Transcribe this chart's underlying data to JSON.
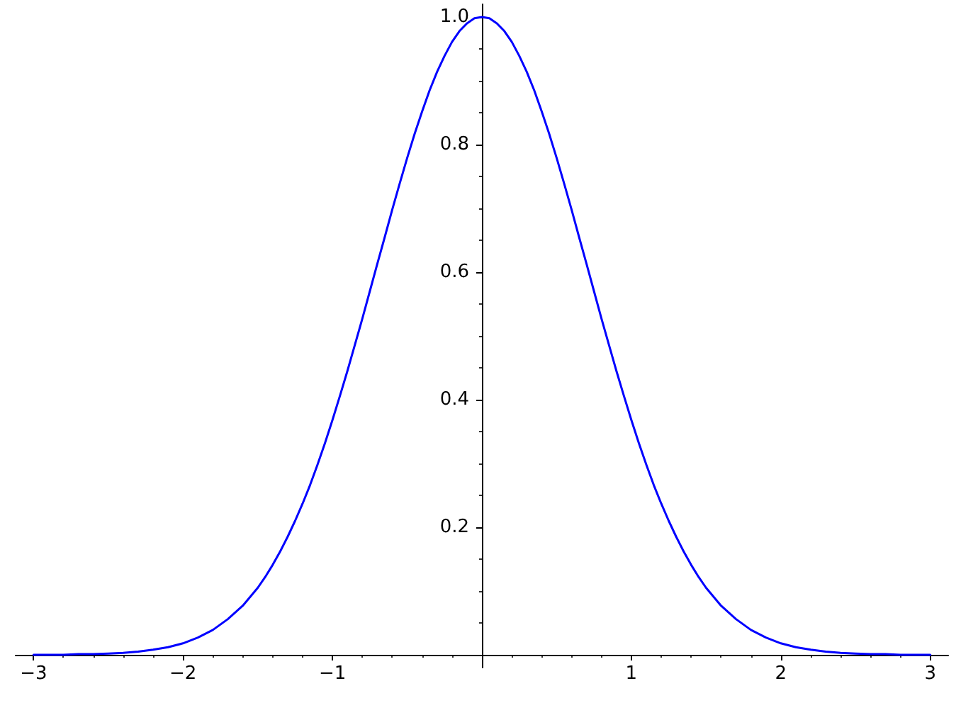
{
  "chart_data": {
    "type": "line",
    "marker": "none",
    "line_style": "solid",
    "x": [
      -3,
      -2.9,
      -2.8,
      -2.7,
      -2.6,
      -2.5,
      -2.4,
      -2.3,
      -2.2,
      -2.1,
      -2,
      -1.9,
      -1.8,
      -1.7,
      -1.6,
      -1.5,
      -1.45,
      -1.4,
      -1.35,
      -1.3,
      -1.25,
      -1.2,
      -1.15,
      -1.1,
      -1.05,
      -1,
      -0.95,
      -0.9,
      -0.85,
      -0.8,
      -0.75,
      -0.7,
      -0.65,
      -0.6,
      -0.55,
      -0.5,
      -0.45,
      -0.4,
      -0.35,
      -0.3,
      -0.25,
      -0.2,
      -0.15,
      -0.1,
      -0.05,
      0,
      0.05,
      0.1,
      0.15,
      0.2,
      0.25,
      0.3,
      0.35,
      0.4,
      0.45,
      0.5,
      0.55,
      0.6,
      0.65,
      0.7,
      0.75,
      0.8,
      0.85,
      0.9,
      0.95,
      1,
      1.05,
      1.1,
      1.15,
      1.2,
      1.25,
      1.3,
      1.35,
      1.4,
      1.45,
      1.5,
      1.6,
      1.7,
      1.8,
      1.9,
      2,
      2.1,
      2.2,
      2.3,
      2.4,
      2.5,
      2.6,
      2.7,
      2.8,
      2.9,
      3
    ],
    "series": [
      {
        "color": "#0000ff",
        "values": [
          0,
          0,
          0,
          0.001,
          0.001,
          0.002,
          0.003,
          0.005,
          0.008,
          0.012,
          0.018,
          0.027,
          0.039,
          0.056,
          0.077,
          0.105,
          0.122,
          0.141,
          0.162,
          0.185,
          0.21,
          0.237,
          0.266,
          0.298,
          0.332,
          0.368,
          0.406,
          0.445,
          0.486,
          0.527,
          0.57,
          0.613,
          0.655,
          0.698,
          0.739,
          0.779,
          0.817,
          0.852,
          0.885,
          0.914,
          0.939,
          0.961,
          0.978,
          0.99,
          0.998,
          1,
          0.998,
          0.99,
          0.978,
          0.961,
          0.939,
          0.914,
          0.885,
          0.852,
          0.817,
          0.779,
          0.739,
          0.698,
          0.655,
          0.613,
          0.57,
          0.527,
          0.486,
          0.445,
          0.406,
          0.368,
          0.332,
          0.298,
          0.266,
          0.237,
          0.21,
          0.185,
          0.162,
          0.141,
          0.122,
          0.105,
          0.077,
          0.056,
          0.039,
          0.027,
          0.018,
          0.012,
          0.008,
          0.005,
          0.003,
          0.002,
          0.001,
          0.001,
          0,
          0,
          0
        ]
      }
    ],
    "xlim": [
      -3.12,
      3.12
    ],
    "xticks": [
      {
        "value": -3,
        "label": "−3"
      },
      {
        "value": -2.8,
        "label": null
      },
      {
        "value": -2.6,
        "label": null
      },
      {
        "value": -2.4,
        "label": null
      },
      {
        "value": -2.2,
        "label": null
      },
      {
        "value": -2,
        "label": "−2"
      },
      {
        "value": -1.8,
        "label": null
      },
      {
        "value": -1.6,
        "label": null
      },
      {
        "value": -1.4,
        "label": null
      },
      {
        "value": -1.2,
        "label": null
      },
      {
        "value": -1,
        "label": "−1"
      },
      {
        "value": -0.8,
        "label": null
      },
      {
        "value": -0.6,
        "label": null
      },
      {
        "value": -0.4,
        "label": null
      },
      {
        "value": -0.2,
        "label": null
      },
      {
        "value": 0.2,
        "label": null
      },
      {
        "value": 0.4,
        "label": null
      },
      {
        "value": 0.6,
        "label": null
      },
      {
        "value": 0.8,
        "label": null
      },
      1,
      {
        "value": 1.2,
        "label": null
      },
      {
        "value": 1.4,
        "label": null
      },
      {
        "value": 1.6,
        "label": null
      },
      {
        "value": 1.8,
        "label": null
      },
      2,
      {
        "value": 2.2,
        "label": null
      },
      {
        "value": 2.4,
        "label": null
      },
      {
        "value": 2.6,
        "label": null
      },
      {
        "value": 2.8,
        "label": null
      },
      3
    ],
    "ylim": [
      -0.02,
      1.02
    ],
    "yticks": [
      {
        "value": 0.05,
        "label": null
      },
      {
        "value": 0.1,
        "label": null
      },
      {
        "value": 0.15,
        "label": null
      },
      0.2,
      {
        "value": 0.25,
        "label": null
      },
      {
        "value": 0.3,
        "label": null
      },
      {
        "value": 0.35,
        "label": null
      },
      0.4,
      {
        "value": 0.45,
        "label": null
      },
      {
        "value": 0.5,
        "label": null
      },
      {
        "value": 0.55,
        "label": null
      },
      0.6,
      {
        "value": 0.65,
        "label": null
      },
      {
        "value": 0.7,
        "label": null
      },
      {
        "value": 0.75,
        "label": null
      },
      0.8,
      {
        "value": 0.85,
        "label": null
      },
      {
        "value": 0.9,
        "label": null
      },
      {
        "value": 0.95,
        "label": null
      },
      {
        "value": 1,
        "label": "1.0"
      }
    ]
  }
}
